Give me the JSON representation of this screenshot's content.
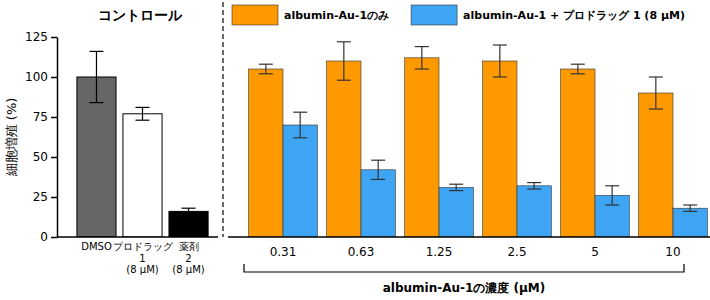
{
  "chart_data": [
    {
      "type": "bar",
      "title": "コントロール",
      "categories": [
        "DMSO",
        "プロドラッグ\n1\n(8 μM)",
        "薬剤\n2\n(8 μM)"
      ],
      "values": [
        100,
        77,
        16
      ],
      "errors": [
        16,
        4,
        2
      ],
      "colors": [
        "#666666",
        "#ffffff",
        "#000000"
      ],
      "y_label": "細胞増殖 (%)",
      "ylim": [
        0,
        125
      ],
      "yticks": [
        0,
        25,
        50,
        75,
        100,
        125
      ]
    },
    {
      "type": "bar",
      "x_label": "albumin-Au-1の濃度 (μM)",
      "categories": [
        "0.31",
        "0.63",
        "1.25",
        "2.5",
        "5",
        "10"
      ],
      "series": [
        {
          "name": "albumin-Au-1のみ",
          "color": "#ff9900",
          "values": [
            105,
            110,
            112,
            110,
            105,
            90
          ],
          "errors": [
            3,
            12,
            7,
            10,
            3,
            10
          ]
        },
        {
          "name": "albumin-Au-1 + プロドラッグ 1 (8 μM)",
          "color": "#3da5f4",
          "values": [
            70,
            42,
            31,
            32,
            26,
            18
          ],
          "errors": [
            8,
            6,
            2,
            2,
            6,
            2
          ]
        }
      ],
      "ylim": [
        0,
        125
      ],
      "legend": "top",
      "tick_labels": "x"
    }
  ]
}
